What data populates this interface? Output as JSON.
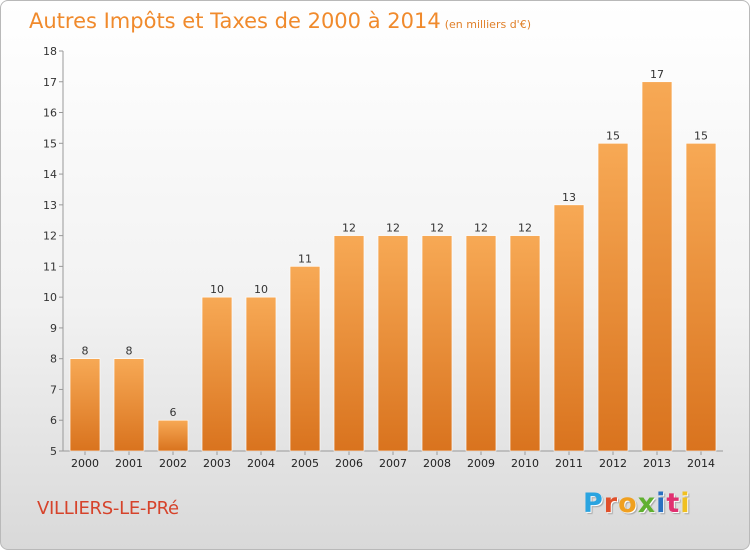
{
  "title": "Autres Impôts et Taxes de 2000 à 2014",
  "subtitle": "(en milliers d'€)",
  "location": "VILLIERS-LE-PRé",
  "logo": {
    "text": "Proxiti",
    "colors": [
      "#2aa4e0",
      "#e0502a",
      "#f0a020",
      "#60b030",
      "#2a70c0",
      "#e03070",
      "#f0c020"
    ]
  },
  "chart_data": {
    "type": "bar",
    "categories": [
      "2000",
      "2001",
      "2002",
      "2003",
      "2004",
      "2005",
      "2006",
      "2007",
      "2008",
      "2009",
      "2010",
      "2011",
      "2012",
      "2013",
      "2014"
    ],
    "values": [
      8,
      8,
      6,
      10,
      10,
      11,
      12,
      12,
      12,
      12,
      12,
      13,
      15,
      17,
      15
    ],
    "ylim": [
      5,
      18
    ],
    "yticks": [
      5,
      6,
      7,
      8,
      9,
      10,
      11,
      12,
      13,
      14,
      15,
      16,
      17,
      18
    ],
    "grid": false,
    "bar_color": "#f0923a"
  }
}
